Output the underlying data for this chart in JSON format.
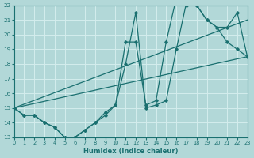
{
  "xlabel": "Humidex (Indice chaleur)",
  "background_color": "#b2d8d8",
  "grid_color": "#d4eded",
  "line_color": "#1a7070",
  "xlim": [
    0,
    23
  ],
  "ylim": [
    13,
    22
  ],
  "xticks": [
    0,
    1,
    2,
    3,
    4,
    5,
    6,
    7,
    8,
    9,
    10,
    11,
    12,
    13,
    14,
    15,
    16,
    17,
    18,
    19,
    20,
    21,
    22,
    23
  ],
  "yticks": [
    13,
    14,
    15,
    16,
    17,
    18,
    19,
    20,
    21,
    22
  ],
  "hours": [
    0,
    1,
    2,
    3,
    4,
    5,
    6,
    7,
    8,
    9,
    10,
    11,
    12,
    13,
    14,
    15,
    16,
    17,
    18,
    19,
    20,
    21,
    22,
    23
  ],
  "line_jagged1": [
    15,
    14.5,
    14.5,
    14,
    13.7,
    13,
    13,
    13.5,
    14,
    14.5,
    15.2,
    18.0,
    21.5,
    15.0,
    15.2,
    15.5,
    19.0,
    22.2,
    22.0,
    21.0,
    20.5,
    19.5,
    19.0,
    18.5
  ],
  "line_jagged2": [
    15,
    14.5,
    14.5,
    14,
    13.7,
    13,
    13,
    13.5,
    14,
    14.7,
    15.2,
    19.5,
    19.5,
    15.2,
    15.5,
    19.5,
    22.5,
    22.0,
    22.0,
    21.0,
    20.5,
    20.5,
    21.5,
    18.5
  ],
  "line_straight1": [
    [
      0,
      15
    ],
    [
      23,
      18.5
    ]
  ],
  "line_straight2": [
    [
      0,
      15
    ],
    [
      23,
      21.0
    ]
  ]
}
